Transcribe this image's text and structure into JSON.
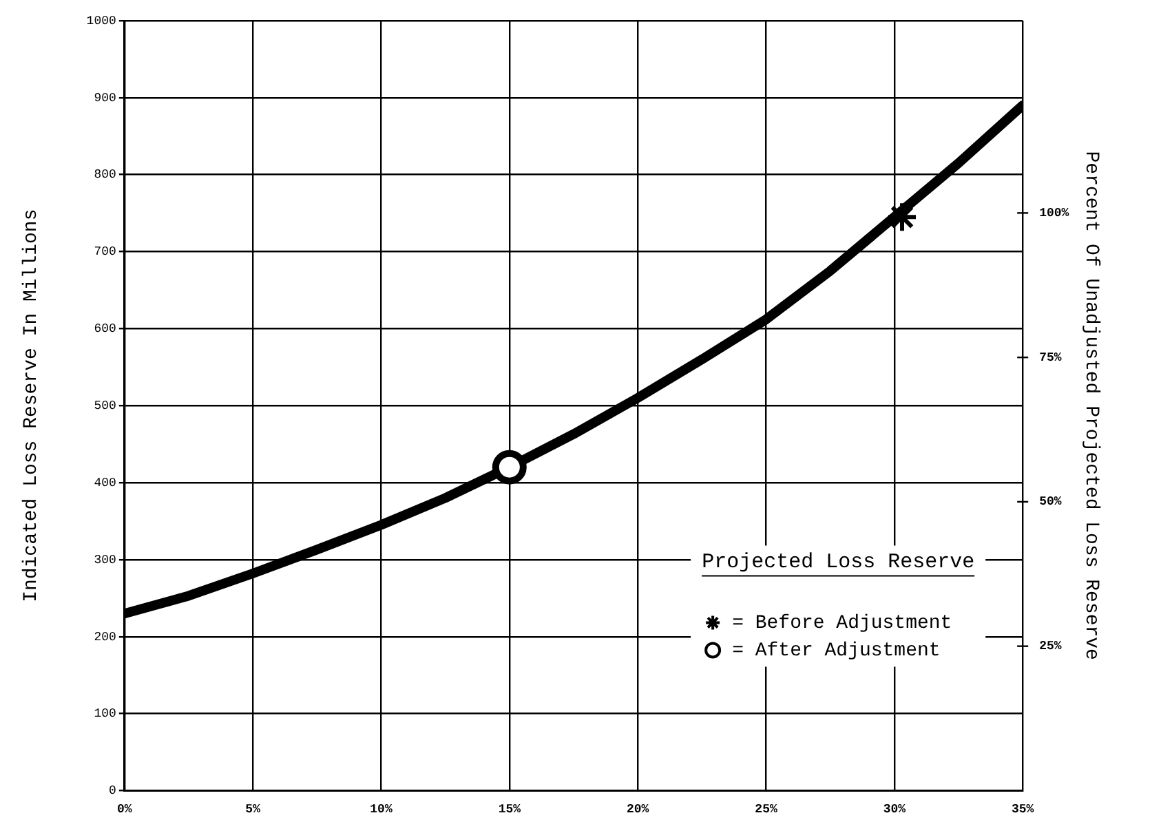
{
  "chart_data": {
    "type": "line",
    "xlabel": null,
    "ylabel": "Indicated Loss Reserve In Millions",
    "y2label": "Percent Of Unadjusted Projected Loss Reserve",
    "legend_title": "Projected Loss Reserve",
    "x": [
      0,
      2.5,
      5,
      7.5,
      10,
      12.5,
      15,
      17.5,
      20,
      22.5,
      25,
      27.5,
      30,
      32.5,
      35
    ],
    "series": [
      {
        "color": "#000000",
        "marker": "none",
        "values": [
          230,
          253,
          282,
          313,
          345,
          380,
          420,
          463,
          510,
          560,
          612,
          675,
          745,
          815,
          890
        ]
      },
      {
        "type": "scatter",
        "name": "= Before Adjustment",
        "color": "#000000",
        "marker": "cross",
        "x": [
          30.3
        ],
        "values": [
          745
        ]
      },
      {
        "type": "scatter",
        "name": "= After Adjustment",
        "color": "#000000",
        "marker": "circle",
        "x": [
          15
        ],
        "values": [
          420
        ]
      }
    ],
    "xlim": [
      0,
      35
    ],
    "xticks": [
      {
        "value": 0,
        "label": "0%"
      },
      {
        "value": 5,
        "label": "5%"
      },
      {
        "value": 10,
        "label": "10%"
      },
      {
        "value": 15,
        "label": "15%"
      },
      {
        "value": 20,
        "label": "20%"
      },
      {
        "value": 25,
        "label": "25%"
      },
      {
        "value": 30,
        "label": "30%"
      },
      {
        "value": 35,
        "label": "35%"
      }
    ],
    "ylim": [
      0,
      1000
    ],
    "yticks": [
      0,
      100,
      200,
      300,
      400,
      500,
      600,
      700,
      800,
      900,
      1000
    ],
    "y2lim": [
      0,
      133.3
    ],
    "y2ticks": [
      {
        "value": 25,
        "label": "25%"
      },
      {
        "value": 50,
        "label": "50%"
      },
      {
        "value": 75,
        "label": "75%"
      },
      {
        "value": 100,
        "label": "100%"
      }
    ],
    "grid": true,
    "legend": "bottom right"
  }
}
